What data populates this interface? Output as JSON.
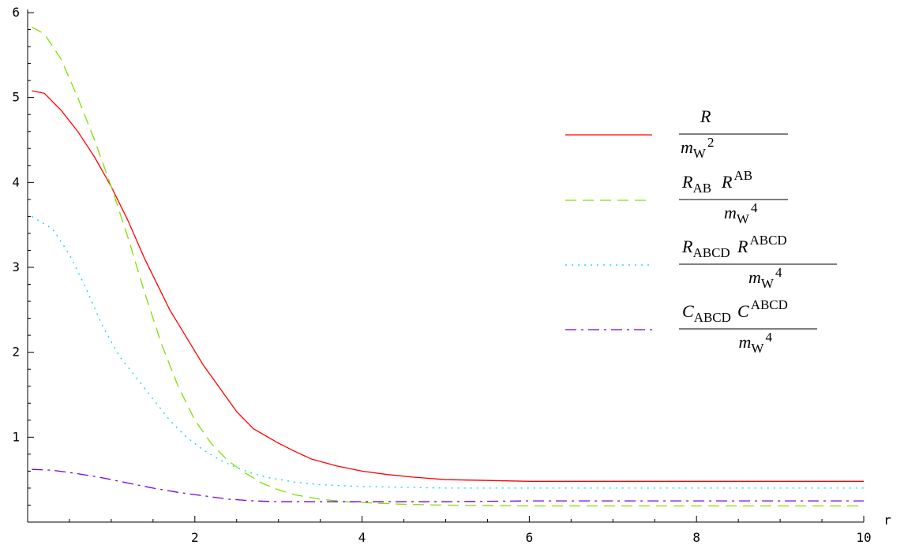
{
  "chart_data": {
    "type": "line",
    "xlabel": "r",
    "ylabel": "",
    "xlim": [
      0,
      10
    ],
    "ylim": [
      0,
      6
    ],
    "xticks": [
      2,
      4,
      6,
      8,
      10
    ],
    "yticks": [
      1,
      2,
      3,
      4,
      5,
      6
    ],
    "grid": false,
    "legend_placement": "top-right",
    "series": [
      {
        "key": "R",
        "color": "#ff0000",
        "dash": "solid",
        "legend": {
          "top": "R",
          "top_sub": "",
          "top_sup": "",
          "top2": "",
          "top2_sub": "",
          "top2_sup": "",
          "bottom": "m",
          "bottom_sub": "W",
          "bottom_sup": "2"
        },
        "x": [
          0.05,
          0.2,
          0.4,
          0.6,
          0.8,
          1.0,
          1.2,
          1.4,
          1.7,
          2.1,
          2.5,
          2.7,
          3.0,
          3.2,
          3.4,
          3.7,
          4.0,
          4.3,
          4.6,
          5.0,
          5.5,
          6.0,
          7.0,
          8.0,
          9.0,
          10.0
        ],
        "y": [
          5.08,
          5.05,
          4.85,
          4.6,
          4.3,
          3.95,
          3.55,
          3.1,
          2.5,
          1.85,
          1.3,
          1.1,
          0.93,
          0.83,
          0.74,
          0.66,
          0.6,
          0.56,
          0.53,
          0.5,
          0.49,
          0.48,
          0.48,
          0.48,
          0.48,
          0.48
        ]
      },
      {
        "key": "RAB",
        "color": "#80e000",
        "dash": "dashed",
        "legend": {
          "top": "R",
          "top_sub": "AB",
          "top_sup": "",
          "top2": "R",
          "top2_sub": "",
          "top2_sup": "AB",
          "bottom": "m",
          "bottom_sub": "W",
          "bottom_sup": "4"
        },
        "x": [
          0.05,
          0.2,
          0.4,
          0.6,
          0.8,
          1.0,
          1.2,
          1.4,
          1.6,
          1.8,
          2.0,
          2.2,
          2.4,
          2.6,
          2.8,
          3.0,
          3.2,
          3.5,
          3.8,
          4.0,
          4.5,
          5.0,
          6.0,
          7.0,
          8.0,
          9.0,
          10.0
        ],
        "y": [
          5.83,
          5.75,
          5.45,
          5.0,
          4.5,
          3.95,
          3.35,
          2.7,
          2.1,
          1.6,
          1.2,
          0.92,
          0.72,
          0.58,
          0.46,
          0.38,
          0.32,
          0.27,
          0.24,
          0.23,
          0.21,
          0.2,
          0.19,
          0.19,
          0.19,
          0.19,
          0.19
        ]
      },
      {
        "key": "RABCD",
        "color": "#00d8e8",
        "dash": "dotted",
        "legend": {
          "top": "R",
          "top_sub": "ABCD",
          "top_sup": "",
          "top2": "R",
          "top2_sub": "",
          "top2_sup": "ABCD",
          "bottom": "m",
          "bottom_sub": "W",
          "bottom_sup": "4"
        },
        "x": [
          0.05,
          0.3,
          0.5,
          0.7,
          0.9,
          1.1,
          1.3,
          1.5,
          1.7,
          1.9,
          2.1,
          2.3,
          2.5,
          2.7,
          2.9,
          3.2,
          3.5,
          4.0,
          4.5,
          5.0,
          6.0,
          7.0,
          8.0,
          9.0,
          10.0
        ],
        "y": [
          3.6,
          3.45,
          3.15,
          2.75,
          2.3,
          1.95,
          1.7,
          1.45,
          1.2,
          1.0,
          0.85,
          0.73,
          0.64,
          0.57,
          0.52,
          0.47,
          0.44,
          0.42,
          0.41,
          0.4,
          0.4,
          0.4,
          0.4,
          0.4,
          0.4
        ]
      },
      {
        "key": "CABCD",
        "color": "#7000e0",
        "dash": "dashdot",
        "legend": {
          "top": "C",
          "top_sub": "ABCD",
          "top_sup": "",
          "top2": "C",
          "top2_sub": "",
          "top2_sup": "ABCD",
          "bottom": "m",
          "bottom_sub": "W",
          "bottom_sup": "4"
        },
        "x": [
          0.05,
          0.3,
          0.6,
          0.9,
          1.2,
          1.5,
          1.8,
          2.1,
          2.4,
          2.7,
          3.0,
          3.5,
          4.0,
          5.0,
          6.0,
          7.0,
          8.0,
          9.0,
          10.0
        ],
        "y": [
          0.62,
          0.61,
          0.57,
          0.52,
          0.46,
          0.4,
          0.35,
          0.31,
          0.27,
          0.25,
          0.24,
          0.24,
          0.24,
          0.24,
          0.25,
          0.25,
          0.25,
          0.25,
          0.25
        ]
      }
    ]
  }
}
